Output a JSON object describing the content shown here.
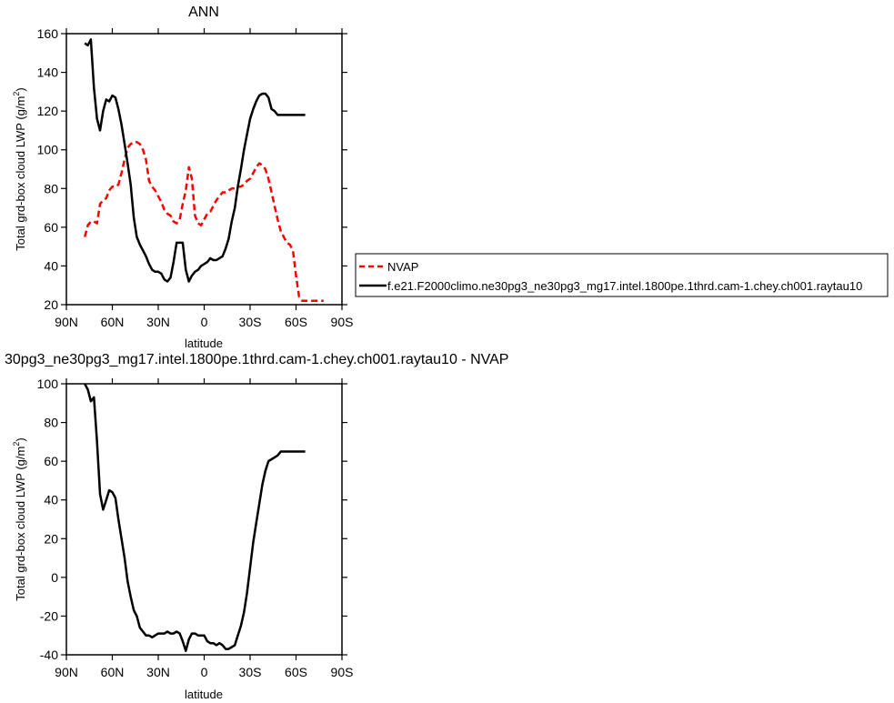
{
  "colors": {
    "model": "#000000",
    "obs": "#ff0000",
    "background": "#ffffff"
  },
  "chart_data": [
    {
      "type": "line",
      "title": "ANN",
      "xlabel": "latitude",
      "ylabel": "Total grd-box cloud LWP (g/m²)",
      "ylabel_main": "Total grd-box cloud LWP (g/m",
      "ylabel_sup": "2",
      "ylabel_close": ")",
      "xlim": [
        -90,
        90
      ],
      "ylim": [
        20,
        160
      ],
      "xticks": [
        -90,
        -60,
        -30,
        0,
        30,
        60,
        90
      ],
      "xtick_labels": [
        "90N",
        "60N",
        "30N",
        "0",
        "30S",
        "60S",
        "90S"
      ],
      "yticks": [
        20,
        40,
        60,
        80,
        100,
        120,
        140,
        160
      ],
      "ytick_labels": [
        "20",
        "40",
        "60",
        "80",
        "100",
        "120",
        "140",
        "160"
      ],
      "legend_position": "right",
      "series": [
        {
          "name": "NVAP",
          "style": "dashed",
          "color": "#ff0000",
          "x": [
            -78,
            -76,
            -74,
            -72,
            -70,
            -68,
            -66,
            -64,
            -62,
            -60,
            -58,
            -56,
            -54,
            -52,
            -50,
            -48,
            -46,
            -44,
            -42,
            -40,
            -38,
            -36,
            -34,
            -32,
            -30,
            -28,
            -26,
            -24,
            -22,
            -20,
            -18,
            -16,
            -14,
            -12,
            -10,
            -8,
            -6,
            -4,
            -2,
            0,
            2,
            4,
            6,
            8,
            10,
            12,
            14,
            16,
            18,
            20,
            22,
            24,
            26,
            28,
            30,
            32,
            34,
            36,
            38,
            40,
            42,
            44,
            46,
            48,
            50,
            52,
            54,
            56,
            58,
            60,
            62,
            64,
            66,
            68,
            70,
            72,
            74,
            76,
            78
          ],
          "values": [
            55,
            61,
            63,
            63,
            62,
            72,
            74,
            75,
            79,
            81,
            81,
            82,
            88,
            95,
            101,
            103,
            104,
            104,
            103,
            100,
            95,
            84,
            81,
            79,
            76,
            73,
            69,
            67,
            66,
            63,
            62,
            64,
            72,
            79,
            91,
            85,
            66,
            62,
            61,
            64,
            67,
            68,
            71,
            74,
            76,
            78,
            78,
            79,
            80,
            80,
            81,
            81,
            82,
            84,
            85,
            88,
            91,
            93,
            92,
            90,
            85,
            78,
            71,
            64,
            58,
            55,
            52,
            51,
            48,
            35,
            24,
            22,
            22,
            22,
            22,
            22,
            22,
            22,
            22
          ]
        },
        {
          "name": "f.e21.F2000climo.ne30pg3_ne30pg3_mg17.intel.1800pe.1thrd.cam-1.chey.ch001.raytau10",
          "style": "solid",
          "color": "#000000",
          "x": [
            -78,
            -76,
            -74,
            -72,
            -70,
            -68,
            -66,
            -64,
            -62,
            -60,
            -58,
            -56,
            -54,
            -52,
            -50,
            -48,
            -46,
            -44,
            -42,
            -40,
            -38,
            -36,
            -34,
            -32,
            -30,
            -28,
            -26,
            -24,
            -22,
            -20,
            -18,
            -16,
            -14,
            -12,
            -10,
            -8,
            -6,
            -4,
            -2,
            0,
            2,
            4,
            6,
            8,
            10,
            12,
            14,
            16,
            18,
            20,
            22,
            24,
            26,
            28,
            30,
            32,
            34,
            36,
            38,
            40,
            42,
            44,
            46,
            48,
            50,
            52,
            54,
            56,
            58,
            60,
            62,
            64,
            66
          ],
          "values": [
            155,
            154,
            157,
            132,
            116,
            110,
            120,
            126,
            125,
            128,
            127,
            121,
            113,
            103,
            93,
            82,
            65,
            55,
            51,
            48,
            45,
            41,
            38,
            37,
            37,
            36,
            33,
            32,
            34,
            42,
            52,
            52,
            52,
            38,
            32,
            35,
            37,
            38,
            40,
            41,
            42,
            44,
            43,
            43,
            44,
            45,
            49,
            54,
            63,
            70,
            81,
            90,
            100,
            108,
            116,
            121,
            125,
            128,
            129,
            129,
            127,
            121,
            120,
            118,
            118,
            118,
            118,
            118,
            118,
            118,
            118,
            118,
            118
          ]
        }
      ]
    },
    {
      "type": "line",
      "title": "30pg3_ne30pg3_mg17.intel.1800pe.1thrd.cam-1.chey.ch001.raytau10 - NVAP",
      "xlabel": "latitude",
      "ylabel": "Total grd-box cloud LWP (g/m²)",
      "ylabel_main": "Total grd-box cloud LWP (g/m",
      "ylabel_sup": "2",
      "ylabel_close": ")",
      "xlim": [
        -90,
        90
      ],
      "ylim": [
        -40,
        100
      ],
      "xticks": [
        -90,
        -60,
        -30,
        0,
        30,
        60,
        90
      ],
      "xtick_labels": [
        "90N",
        "60N",
        "30N",
        "0",
        "30S",
        "60S",
        "90S"
      ],
      "yticks": [
        -40,
        -20,
        0,
        20,
        40,
        60,
        80,
        100
      ],
      "ytick_labels": [
        "-40",
        "-20",
        "0",
        "20",
        "40",
        "60",
        "80",
        "100"
      ],
      "series": [
        {
          "style": "solid",
          "color": "#000000",
          "x": [
            -78,
            -76,
            -74,
            -72,
            -70,
            -68,
            -66,
            -64,
            -62,
            -60,
            -58,
            -56,
            -54,
            -52,
            -50,
            -48,
            -46,
            -44,
            -42,
            -40,
            -38,
            -36,
            -34,
            -32,
            -30,
            -28,
            -26,
            -24,
            -22,
            -20,
            -18,
            -16,
            -14,
            -12,
            -10,
            -8,
            -6,
            -4,
            -2,
            0,
            2,
            4,
            6,
            8,
            10,
            12,
            14,
            16,
            18,
            20,
            22,
            24,
            26,
            28,
            30,
            32,
            34,
            36,
            38,
            40,
            42,
            44,
            46,
            48,
            50,
            52,
            54,
            56,
            58,
            60,
            62,
            64,
            66
          ],
          "values": [
            100,
            97,
            91,
            93,
            70,
            43,
            35,
            40,
            45,
            44,
            41,
            30,
            20,
            10,
            -2,
            -10,
            -17,
            -20,
            -26,
            -28,
            -30,
            -30,
            -31,
            -30,
            -29,
            -29,
            -29,
            -28,
            -29,
            -29,
            -28,
            -29,
            -33,
            -38,
            -32,
            -29,
            -29,
            -30,
            -30,
            -30,
            -33,
            -34,
            -34,
            -35,
            -34,
            -35,
            -37,
            -37,
            -36,
            -35,
            -30,
            -25,
            -18,
            -8,
            5,
            18,
            28,
            38,
            48,
            55,
            60,
            61,
            62,
            63,
            65,
            65,
            65,
            65,
            65,
            65,
            65,
            65,
            65
          ]
        }
      ]
    }
  ]
}
